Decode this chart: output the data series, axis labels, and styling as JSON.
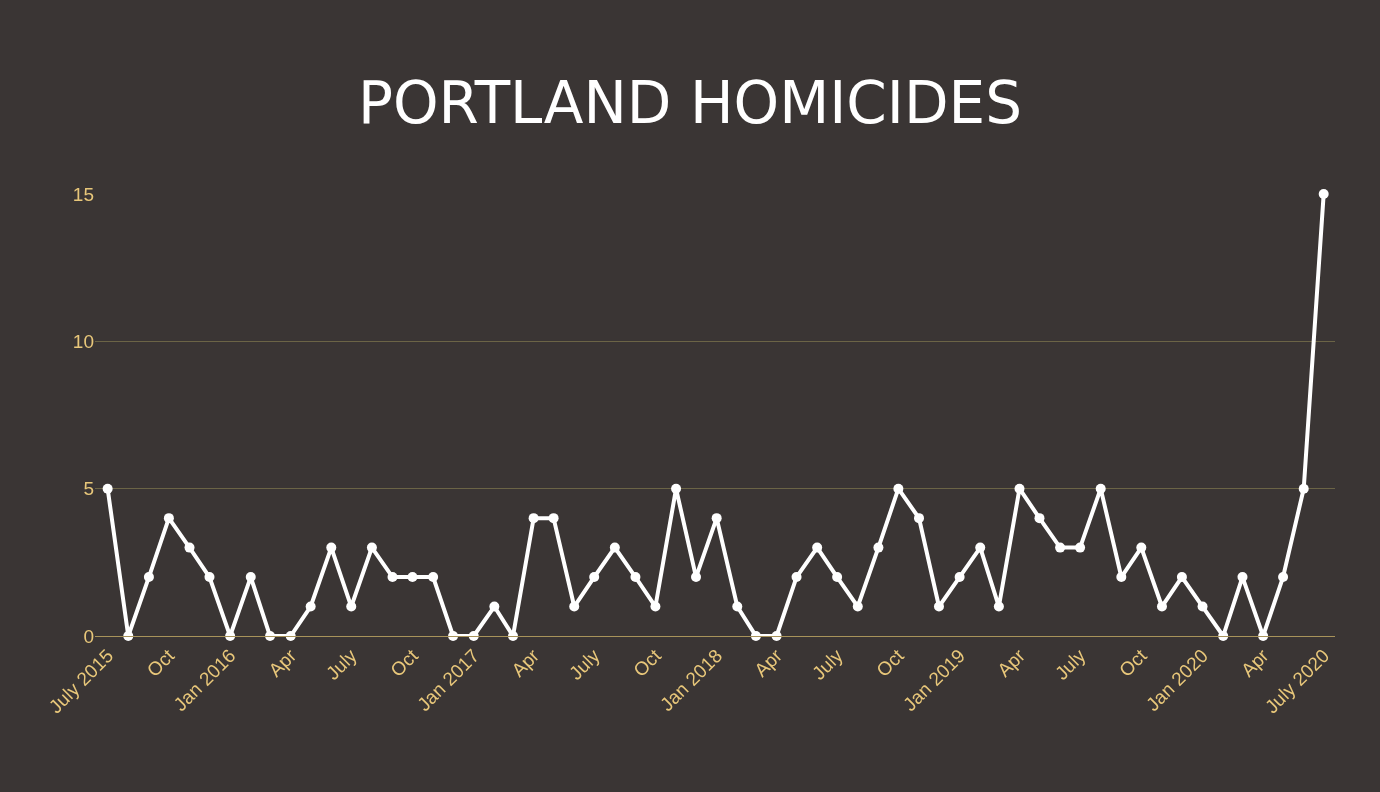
{
  "chart_data": {
    "type": "line",
    "title": "PORTLAND HOMICIDES",
    "x": [
      "2015-07",
      "2015-08",
      "2015-09",
      "2015-10",
      "2015-11",
      "2015-12",
      "2016-01",
      "2016-02",
      "2016-03",
      "2016-04",
      "2016-05",
      "2016-06",
      "2016-07",
      "2016-08",
      "2016-09",
      "2016-10",
      "2016-11",
      "2016-12",
      "2017-01",
      "2017-02",
      "2017-03",
      "2017-04",
      "2017-05",
      "2017-06",
      "2017-07",
      "2017-08",
      "2017-09",
      "2017-10",
      "2017-11",
      "2017-12",
      "2018-01",
      "2018-02",
      "2018-03",
      "2018-04",
      "2018-05",
      "2018-06",
      "2018-07",
      "2018-08",
      "2018-09",
      "2018-10",
      "2018-11",
      "2018-12",
      "2019-01",
      "2019-02",
      "2019-03",
      "2019-04",
      "2019-05",
      "2019-06",
      "2019-07",
      "2019-08",
      "2019-09",
      "2019-10",
      "2019-11",
      "2019-12",
      "2020-01",
      "2020-02",
      "2020-03",
      "2020-04",
      "2020-05",
      "2020-06",
      "2020-07"
    ],
    "series": [
      {
        "color": "#ffffff",
        "values": [
          5,
          0,
          2,
          4,
          3,
          2,
          0,
          2,
          0,
          0,
          1,
          3,
          1,
          3,
          2,
          2,
          2,
          0,
          0,
          1,
          0,
          4,
          4,
          1,
          2,
          3,
          2,
          1,
          5,
          2,
          4,
          1,
          0,
          0,
          2,
          3,
          2,
          1,
          3,
          5,
          4,
          1,
          2,
          3,
          1,
          5,
          4,
          3,
          3,
          5,
          2,
          3,
          1,
          2,
          1,
          0,
          2,
          0,
          2,
          5,
          15
        ]
      }
    ],
    "xlim": [
      "2015-06-12",
      "2020-07-18"
    ],
    "xticks": [
      {
        "value": "2015-07",
        "label": "July 2015"
      },
      {
        "value": "2015-10",
        "label": "Oct"
      },
      {
        "value": "2016-01",
        "label": "Jan 2016"
      },
      {
        "value": "2016-04",
        "label": "Apr"
      },
      {
        "value": "2016-07",
        "label": "July"
      },
      {
        "value": "2016-10",
        "label": "Oct"
      },
      {
        "value": "2017-01",
        "label": "Jan 2017"
      },
      {
        "value": "2017-04",
        "label": "Apr"
      },
      {
        "value": "2017-07",
        "label": "July"
      },
      {
        "value": "2017-10",
        "label": "Oct"
      },
      {
        "value": "2018-01",
        "label": "Jan 2018"
      },
      {
        "value": "2018-04",
        "label": "Apr"
      },
      {
        "value": "2018-07",
        "label": "July"
      },
      {
        "value": "2018-10",
        "label": "Oct"
      },
      {
        "value": "2019-01",
        "label": "Jan 2019"
      },
      {
        "value": "2019-04",
        "label": "Apr"
      },
      {
        "value": "2019-07",
        "label": "July"
      },
      {
        "value": "2019-10",
        "label": "Oct"
      },
      {
        "value": "2020-01",
        "label": "Jan 2020"
      },
      {
        "value": "2020-04",
        "label": "Apr"
      },
      {
        "value": "2020-07",
        "label": "July 2020"
      }
    ],
    "ylim": [
      0,
      15
    ],
    "yticks": [
      0,
      5,
      10,
      15
    ],
    "grid": "y",
    "marker": "circle",
    "line_style": "solid"
  }
}
